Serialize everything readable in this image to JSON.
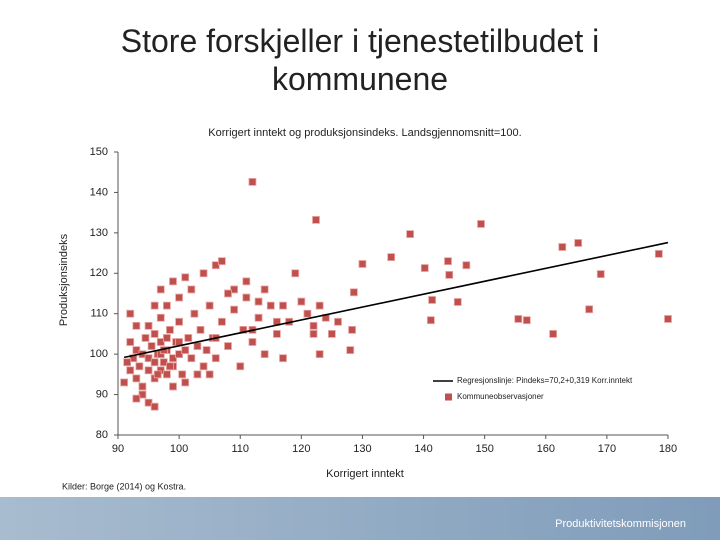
{
  "chart_data": {
    "type": "scatter",
    "title": "Store forskjeller i tjenestetilbudet i kommunene",
    "subtitle": "Korrigert inntekt og produksjonsindeks. Landsgjennomsnitt=100.",
    "x_label": "Korrigert inntekt",
    "y_label": "Produksjonsindeks",
    "source": "Kilder: Borge (2014) og Kostra.",
    "footer": "Produktivitetskommisjonen",
    "xlim": [
      90,
      180
    ],
    "ylim": [
      80,
      150
    ],
    "xticks": [
      90,
      100,
      110,
      120,
      130,
      140,
      150,
      160,
      170,
      180
    ],
    "yticks": [
      80,
      90,
      100,
      110,
      120,
      130,
      140,
      150
    ],
    "legend": "bottom-right",
    "series": [
      {
        "name": "Kommuneobservasjoner",
        "color": "#c0504d",
        "x": [
          92,
          92.5,
          93,
          93,
          93.5,
          94,
          94,
          94.5,
          95,
          95,
          95.5,
          96,
          96,
          96.5,
          97,
          97,
          97.5,
          98,
          98,
          98.5,
          99,
          99,
          99.5,
          100,
          100,
          100.5,
          101,
          101.5,
          102,
          102.5,
          103,
          103.5,
          104,
          104.5,
          105,
          105.5,
          106,
          107,
          108,
          109,
          110,
          110.5,
          111,
          112,
          113,
          114,
          115,
          116,
          117,
          118,
          96,
          97,
          99,
          101,
          93,
          92,
          95,
          96,
          94,
          93,
          91,
          91.5,
          92,
          97,
          98,
          100,
          102,
          104,
          106,
          107,
          109,
          111,
          95,
          96,
          98,
          100,
          99,
          101,
          103,
          105,
          106,
          108,
          112,
          113,
          114,
          116,
          117,
          119,
          120,
          121,
          122,
          122,
          123,
          124,
          125,
          126,
          123,
          97,
          97.5,
          98.5,
          96.5,
          112,
          122.4,
          137.8,
          149.4,
          162.7,
          165.3,
          178.5,
          180,
          169,
          167.1,
          161.2,
          155.5,
          156.9,
          145.6,
          144.2,
          140.2,
          144,
          147,
          141.4,
          141.2,
          134.7,
          130,
          128.6,
          128,
          128.3
        ],
        "y": [
          96,
          99,
          94,
          101,
          97,
          92,
          100,
          104,
          96,
          99,
          102,
          94,
          98,
          100,
          96,
          103,
          98,
          95,
          101,
          106,
          97,
          99,
          103,
          100,
          108,
          95,
          101,
          104,
          99,
          110,
          102,
          106,
          97,
          101,
          112,
          104,
          99,
          108,
          102,
          111,
          97,
          106,
          118,
          103,
          109,
          100,
          112,
          105,
          99,
          108,
          112,
          116,
          118,
          119,
          107,
          110,
          88,
          87,
          90,
          89,
          93,
          98,
          103,
          109,
          112,
          114,
          116,
          120,
          122,
          123,
          116,
          114,
          107,
          105,
          104,
          103,
          92,
          93,
          95,
          95,
          104,
          115,
          106,
          113,
          116,
          108,
          112,
          120,
          113,
          110,
          105,
          107,
          100,
          109,
          105,
          108,
          112,
          100,
          101,
          97,
          95,
          142.6,
          133.2,
          129.7,
          132.2,
          126.5,
          127.5,
          124.8,
          108.7,
          119.8,
          111.1,
          105,
          108.7,
          108.4,
          112.9,
          119.6,
          121.3,
          123,
          122,
          113.4,
          108.4,
          124,
          122.3,
          115.3,
          101,
          106
        ]
      },
      {
        "name": "Regresjonslinje: Pindeks=70,2+0,319 Korr.inntekt",
        "color": "#000000",
        "x": [
          91,
          180
        ],
        "y": [
          99.2,
          127.6
        ]
      }
    ]
  }
}
